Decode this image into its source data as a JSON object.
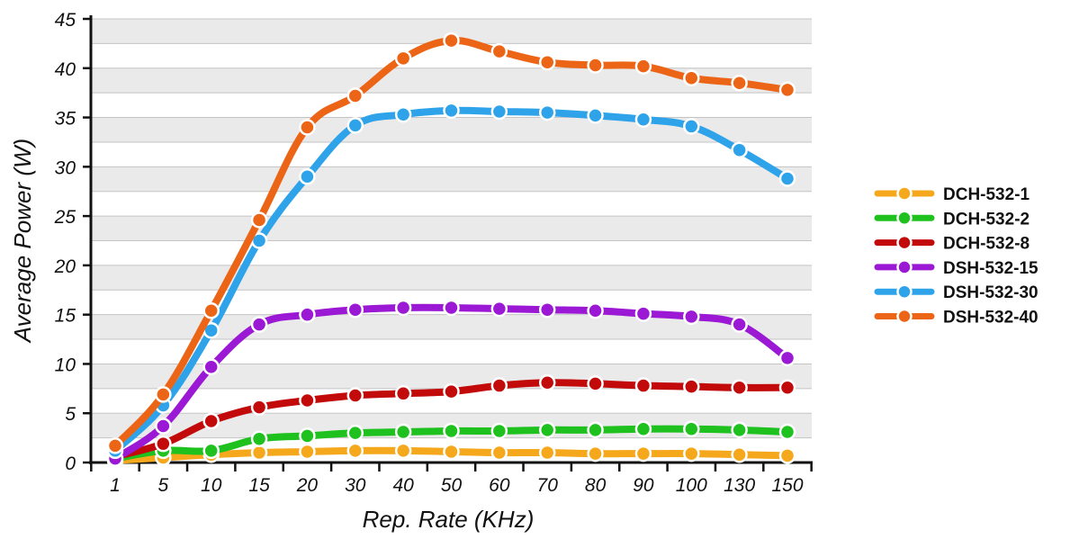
{
  "chart_data": {
    "type": "line",
    "xlabel": "Rep. Rate (KHz)",
    "ylabel": "Average Power (W)",
    "categories": [
      "1",
      "5",
      "10",
      "15",
      "20",
      "30",
      "40",
      "50",
      "60",
      "70",
      "80",
      "90",
      "100",
      "130",
      "150"
    ],
    "ylim": [
      0,
      45
    ],
    "yticks": [
      0,
      5,
      10,
      15,
      20,
      25,
      30,
      35,
      40,
      45
    ],
    "grid": "horizontal, alternating gray bands",
    "legend_position": "right",
    "series": [
      {
        "name": "DCH-532-1",
        "color": "#f5a81c",
        "values": [
          0.2,
          0.5,
          0.8,
          1.0,
          1.1,
          1.2,
          1.2,
          1.1,
          1.0,
          1.0,
          0.9,
          0.9,
          0.9,
          0.8,
          0.7
        ]
      },
      {
        "name": "DCH-532-2",
        "color": "#1ec11e",
        "values": [
          0.4,
          1.2,
          1.2,
          2.4,
          2.7,
          3.0,
          3.1,
          3.2,
          3.2,
          3.3,
          3.3,
          3.4,
          3.4,
          3.3,
          3.1
        ]
      },
      {
        "name": "DCH-532-8",
        "color": "#c20a0a",
        "values": [
          0.6,
          1.9,
          4.2,
          5.6,
          6.3,
          6.8,
          7.0,
          7.2,
          7.8,
          8.1,
          8.0,
          7.8,
          7.7,
          7.6,
          7.6
        ]
      },
      {
        "name": "DSH-532-15",
        "color": "#9b19d4",
        "values": [
          0.4,
          3.7,
          9.7,
          14.0,
          15.0,
          15.5,
          15.7,
          15.7,
          15.6,
          15.5,
          15.4,
          15.1,
          14.8,
          14.0,
          10.6
        ]
      },
      {
        "name": "DSH-532-30",
        "color": "#2ea3ea",
        "values": [
          1.2,
          5.8,
          13.4,
          22.5,
          29.0,
          34.2,
          35.3,
          35.7,
          35.6,
          35.5,
          35.2,
          34.8,
          34.1,
          31.7,
          28.8
        ]
      },
      {
        "name": "DSH-532-40",
        "color": "#ec6415",
        "values": [
          1.7,
          6.9,
          15.4,
          24.6,
          34.0,
          37.2,
          41.0,
          42.8,
          41.7,
          40.6,
          40.3,
          40.2,
          39.0,
          38.5,
          37.8
        ]
      }
    ]
  }
}
